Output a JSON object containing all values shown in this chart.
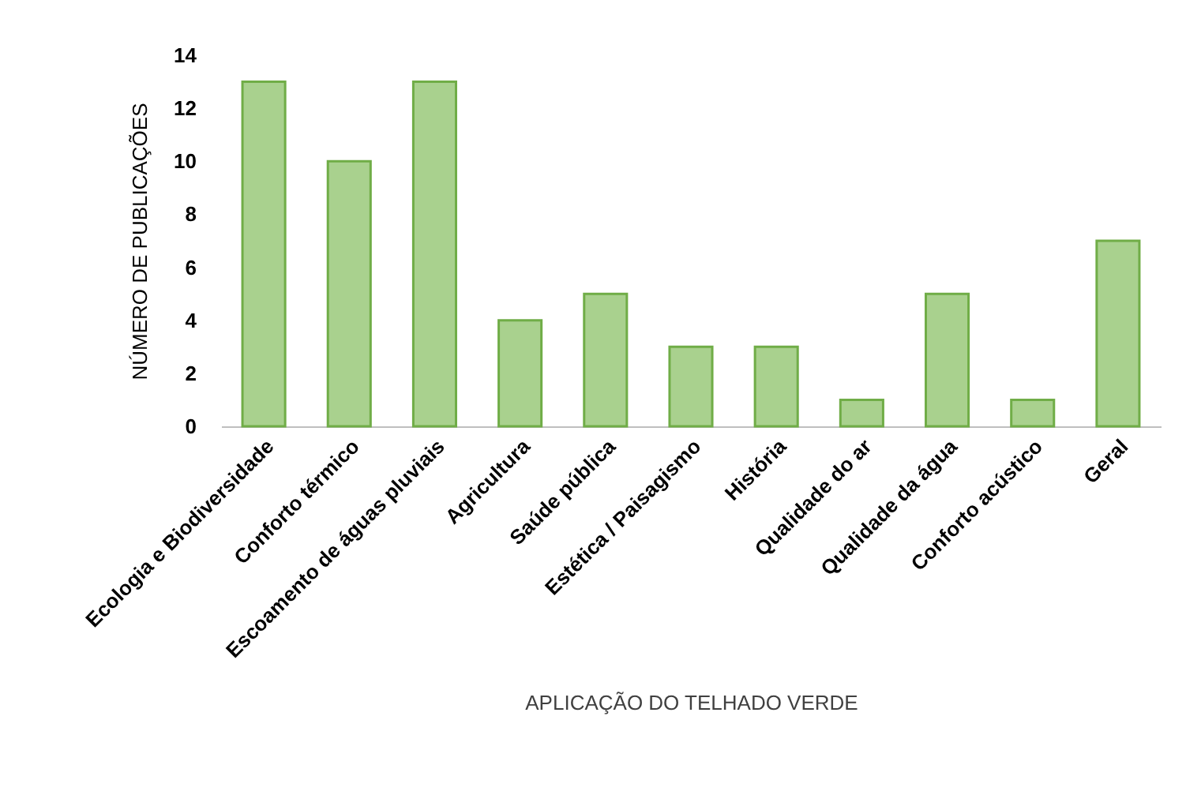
{
  "chart_data": {
    "type": "bar",
    "xlabel": "APLICAÇÃO DO TELHADO VERDE",
    "ylabel": "NÚMERO DE PUBLICAÇÕES",
    "categories": [
      "Ecologia e Biodiversidade",
      "Conforto térmico",
      "Escoamento de águas pluviais",
      "Agricultura",
      "Saúde pública",
      "Estética / Paisagismo",
      "História",
      "Qualidade do ar",
      "Qualidade da água",
      "Conforto acústico",
      "Geral"
    ],
    "values": [
      13,
      10,
      13,
      4,
      5,
      3,
      3,
      1,
      5,
      1,
      7
    ],
    "color": "#a9d18e",
    "ylim": [
      0,
      14
    ],
    "yticks": [
      0,
      2,
      4,
      6,
      8,
      10,
      12,
      14
    ],
    "grid": false
  }
}
